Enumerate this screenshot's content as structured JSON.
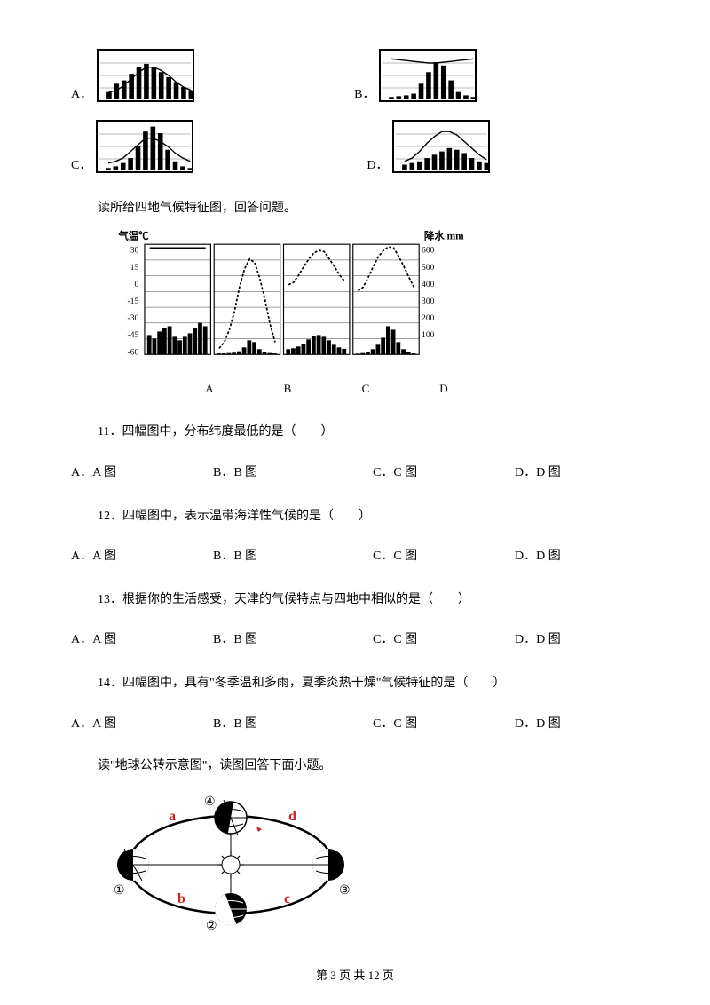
{
  "top_options": {
    "A": "A．",
    "B": "B．",
    "C": "C．",
    "D": "D．"
  },
  "intro1": "读所给四地气候特征图，回答问题。",
  "climate_chart": {
    "y_left_label": "气温℃",
    "y_right_label": "降水 mm",
    "y_left_values": [
      "30",
      "15",
      "0",
      "-15",
      "-30",
      "-45",
      "-60"
    ],
    "y_right_values": [
      "600",
      "500",
      "400",
      "300",
      "200",
      "100"
    ],
    "panel_labels": [
      "A",
      "B",
      "C",
      "D"
    ]
  },
  "q11": {
    "text": "11．四幅图中，分布纬度最低的是（　　）",
    "A": "A．A 图",
    "B": "B．B 图",
    "C": "C．C 图",
    "D": "D．D 图"
  },
  "q12": {
    "text": "12．四幅图中，表示温带海洋性气候的是（　　）",
    "A": "A．A 图",
    "B": "B．B 图",
    "C": "C．C 图",
    "D": "D．D 图"
  },
  "q13": {
    "text": "13．根据你的生活感受，天津的气候特点与四地中相似的是（　　）",
    "A": "A．A 图",
    "B": "B．B 图",
    "C": "C．C 图",
    "D": "D．D 图"
  },
  "q14": {
    "text": "14．四幅图中，具有\"冬季温和多雨，夏季炎热干燥\"气候特征的是（　　）",
    "A": "A．A 图",
    "B": "B．B 图",
    "C": "C．C 图",
    "D": "D．D 图"
  },
  "intro2": "读\"地球公转示意图\"，读图回答下面小题。",
  "orbit": {
    "labels": {
      "a": "a",
      "b": "b",
      "c": "c",
      "d": "d"
    },
    "circles": {
      "1": "①",
      "2": "②",
      "3": "③",
      "4": "④"
    }
  },
  "footer": "第 3 页 共 12 页",
  "mini_charts": {
    "A": {
      "bars": [
        8,
        18,
        22,
        30,
        38,
        42,
        38,
        32,
        26,
        20,
        14,
        10
      ],
      "line": [
        50,
        48,
        42,
        34,
        26,
        20,
        20,
        24,
        30,
        38,
        44,
        48
      ]
    },
    "B": {
      "bars": [
        2,
        3,
        4,
        6,
        18,
        32,
        44,
        40,
        22,
        8,
        4,
        2
      ],
      "line": [
        10,
        11,
        12,
        13,
        14,
        15,
        15,
        14,
        13,
        12,
        11,
        10
      ]
    },
    "C": {
      "bars": [
        2,
        4,
        8,
        14,
        28,
        46,
        52,
        44,
        24,
        10,
        4,
        2
      ],
      "line": [
        50,
        48,
        44,
        36,
        28,
        20,
        20,
        24,
        30,
        38,
        44,
        48
      ]
    },
    "D": {
      "bars": [
        6,
        8,
        10,
        14,
        18,
        22,
        26,
        24,
        20,
        14,
        10,
        8
      ],
      "line": [
        48,
        44,
        36,
        26,
        18,
        12,
        12,
        16,
        24,
        32,
        40,
        46
      ]
    }
  },
  "main_chart_data": {
    "A": {
      "temp": [
        27,
        27,
        27,
        27,
        27,
        27,
        27,
        27,
        27,
        27,
        27,
        27
      ],
      "rain": [
        110,
        90,
        130,
        150,
        160,
        100,
        80,
        100,
        120,
        150,
        180,
        160
      ]
    },
    "B": {
      "temp": [
        -55,
        -50,
        -40,
        -25,
        -5,
        10,
        18,
        15,
        2,
        -15,
        -35,
        -50
      ],
      "rain": [
        6,
        6,
        8,
        10,
        18,
        40,
        80,
        70,
        30,
        14,
        8,
        6
      ]
    },
    "C": {
      "temp": [
        -3,
        -1,
        5,
        12,
        18,
        23,
        25,
        24,
        18,
        12,
        5,
        0
      ],
      "rain": [
        30,
        35,
        45,
        60,
        85,
        105,
        110,
        100,
        80,
        55,
        40,
        32
      ]
    },
    "D": {
      "temp": [
        -8,
        -5,
        3,
        12,
        20,
        25,
        28,
        27,
        20,
        12,
        3,
        -5
      ],
      "rain": [
        5,
        8,
        15,
        30,
        55,
        95,
        160,
        140,
        70,
        30,
        12,
        6
      ]
    }
  },
  "colors": {
    "text": "#000000",
    "bg": "#ffffff",
    "accent_red": "#d02020",
    "border": "#000000"
  }
}
